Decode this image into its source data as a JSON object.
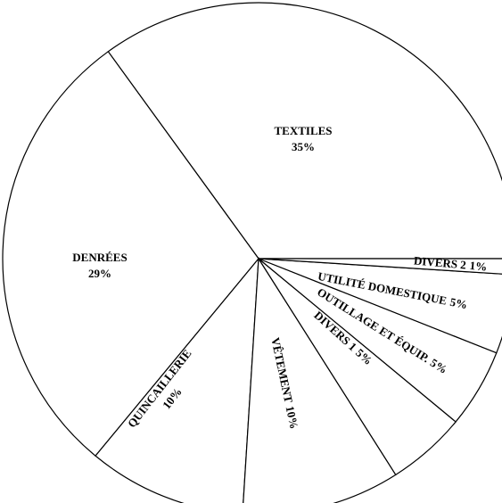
{
  "chart_data": {
    "type": "pie",
    "categories": [
      "TEXTILES",
      "DENRÉES",
      "QUINCAILLERIE",
      "VÊTEMENT",
      "DIVERS 1",
      "OUTILLAGE ET ÉQUIP.",
      "UTILITÉ DOMESTIQUE",
      "DIVERS 2"
    ],
    "values": [
      35,
      29,
      10,
      10,
      5,
      5,
      5,
      1
    ],
    "value_labels": [
      "35%",
      "29%",
      "10%",
      "10%",
      "5%",
      "5%",
      "5%",
      "1%"
    ],
    "color": "#ffffff"
  }
}
